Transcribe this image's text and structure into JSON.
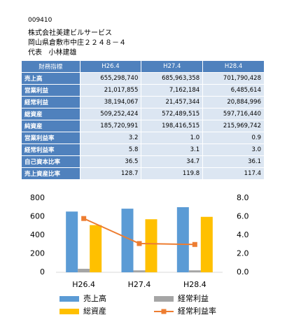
{
  "header": {
    "code": "009410",
    "company": "株式会社美建ビルサービス",
    "address": "岡山県倉敷市中庄２２４８－４",
    "representative_title": "代表",
    "representative_name": "小林建雄"
  },
  "table": {
    "columns": [
      "財務指標",
      "H26.4",
      "H27.4",
      "H28.4"
    ],
    "rows": [
      [
        "売上高",
        "655,298,740",
        "685,963,358",
        "701,790,428"
      ],
      [
        "営業利益",
        "21,017,855",
        "7,162,184",
        "6,485,614"
      ],
      [
        "経常利益",
        "38,194,067",
        "21,457,344",
        "20,884,996"
      ],
      [
        "総資産",
        "509,252,424",
        "572,489,515",
        "597,716,440"
      ],
      [
        "純資産",
        "185,720,991",
        "198,416,515",
        "215,969,742"
      ],
      [
        "営業利益率",
        "3.2",
        "1.0",
        "0.9"
      ],
      [
        "経常利益率",
        "5.8",
        "3.1",
        "3.0"
      ],
      [
        "自己資本比率",
        "36.5",
        "34.7",
        "36.1"
      ],
      [
        "売上資産比率",
        "128.7",
        "119.8",
        "117.4"
      ]
    ]
  },
  "chart_data": {
    "type": "bar",
    "categories": [
      "H26.4",
      "H27.4",
      "H28.4"
    ],
    "series": [
      {
        "name": "売上高",
        "color": "#5b9bd5",
        "values": [
          655,
          686,
          702
        ]
      },
      {
        "name": "経常利益",
        "color": "#a5a5a5",
        "values": [
          38,
          21,
          21
        ]
      },
      {
        "name": "総資産",
        "color": "#ffc000",
        "values": [
          509,
          572,
          598
        ]
      },
      {
        "name": "経常利益率",
        "color": "#ed7d31",
        "type": "line",
        "axis": "y2",
        "values": [
          5.8,
          3.1,
          3.0
        ]
      }
    ],
    "ylim": [
      0,
      800
    ],
    "yticks": [
      0,
      200,
      400,
      600,
      800
    ],
    "y2lim": [
      0,
      8
    ],
    "y2ticks": [
      {
        "value": 0,
        "label": "0.0"
      },
      {
        "value": 2,
        "label": "2.0"
      },
      {
        "value": 4,
        "label": "4.0"
      },
      {
        "value": 6,
        "label": "6.0"
      },
      {
        "value": 8,
        "label": "8.0"
      }
    ],
    "grid": false
  }
}
